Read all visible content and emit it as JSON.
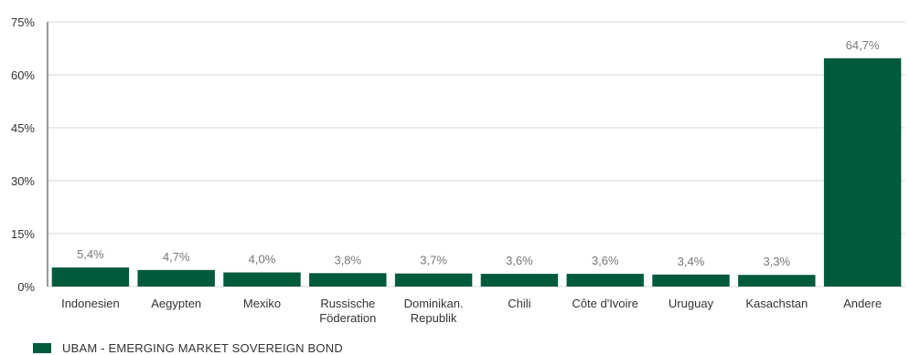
{
  "chart_data": {
    "type": "bar",
    "categories": [
      "Indonesien",
      "Aegypten",
      "Mexiko",
      "Russische\nFöderation",
      "Dominikan.\nRepublik",
      "Chili",
      "Côte d'Ivoire",
      "Uruguay",
      "Kasachstan",
      "Andere"
    ],
    "series": [
      {
        "name": "UBAM - EMERGING MARKET SOVEREIGN BOND",
        "values": [
          5.4,
          4.7,
          4.0,
          3.8,
          3.7,
          3.6,
          3.6,
          3.4,
          3.3,
          64.7
        ],
        "labels": [
          "5,4%",
          "4,7%",
          "4,0%",
          "3,8%",
          "3,7%",
          "3,6%",
          "3,6%",
          "3,4%",
          "3,3%",
          "64,7%"
        ]
      }
    ],
    "ylim": [
      0,
      75
    ],
    "yticks": [
      0,
      15,
      30,
      45,
      60,
      75
    ],
    "ytick_labels": [
      "0%",
      "15%",
      "30%",
      "45%",
      "60%",
      "75%"
    ],
    "grid": true,
    "legend_position": "bottom-left",
    "colors": {
      "bar": "#005a3c",
      "grid": "#d9d9d9",
      "text": "#333333",
      "value_label": "#777777"
    }
  }
}
